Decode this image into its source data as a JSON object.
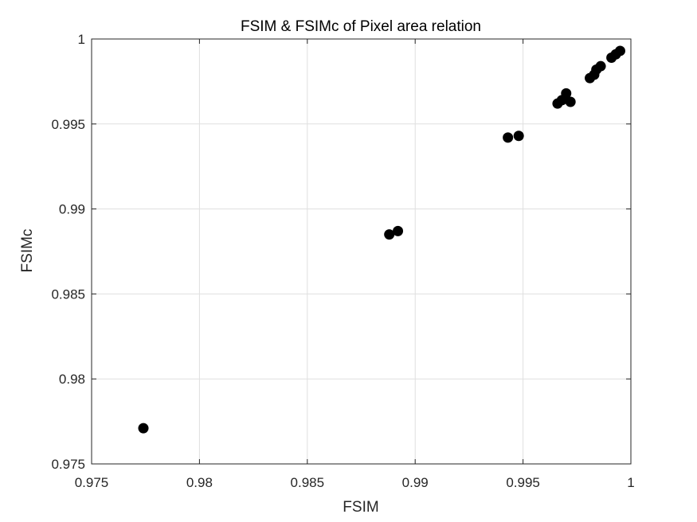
{
  "chart_data": {
    "type": "scatter",
    "title": "FSIM & FSIMc of Pixel area relation",
    "xlabel": "FSIM",
    "ylabel": "FSIMc",
    "xlim": [
      0.975,
      1
    ],
    "ylim": [
      0.975,
      1
    ],
    "xticks": [
      "0.975",
      "0.98",
      "0.985",
      "0.99",
      "0.995",
      "1"
    ],
    "yticks": [
      "0.975",
      "0.98",
      "0.985",
      "0.99",
      "0.995",
      "1"
    ],
    "grid": true,
    "marker_color": "#000000",
    "points": [
      {
        "x": 0.9774,
        "y": 0.9771
      },
      {
        "x": 0.9888,
        "y": 0.9885
      },
      {
        "x": 0.9892,
        "y": 0.9887
      },
      {
        "x": 0.9943,
        "y": 0.9942
      },
      {
        "x": 0.9948,
        "y": 0.9943
      },
      {
        "x": 0.9966,
        "y": 0.9962
      },
      {
        "x": 0.9968,
        "y": 0.9964
      },
      {
        "x": 0.997,
        "y": 0.9968
      },
      {
        "x": 0.9972,
        "y": 0.9963
      },
      {
        "x": 0.9981,
        "y": 0.9977
      },
      {
        "x": 0.9983,
        "y": 0.9979
      },
      {
        "x": 0.9984,
        "y": 0.9982
      },
      {
        "x": 0.9986,
        "y": 0.9984
      },
      {
        "x": 0.9991,
        "y": 0.9989
      },
      {
        "x": 0.9993,
        "y": 0.9991
      },
      {
        "x": 0.9995,
        "y": 0.9993
      }
    ]
  }
}
